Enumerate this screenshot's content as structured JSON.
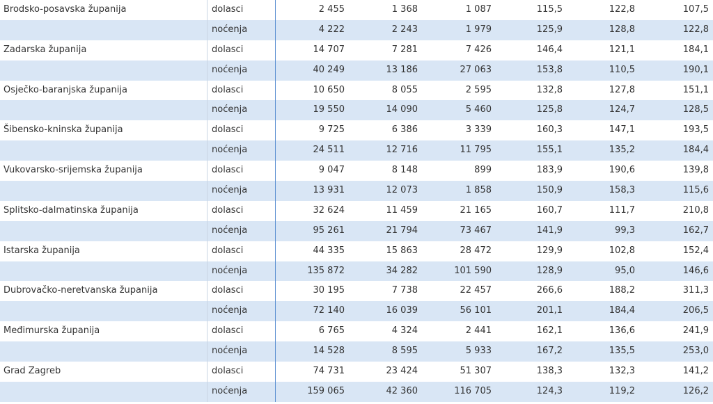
{
  "table": {
    "groups": [
      {
        "name": "Brodsko-posavska županija",
        "rows": [
          {
            "label": "dolasci",
            "cells": [
              "2 455",
              "1 368",
              "1 087",
              "115,5",
              "122,8",
              "107,5"
            ]
          },
          {
            "label": "noćenja",
            "cells": [
              "4 222",
              "2 243",
              "1 979",
              "125,9",
              "128,8",
              "122,8"
            ]
          }
        ]
      },
      {
        "name": "Zadarska županija",
        "rows": [
          {
            "label": "dolasci",
            "cells": [
              "14 707",
              "7 281",
              "7 426",
              "146,4",
              "121,1",
              "184,1"
            ]
          },
          {
            "label": "noćenja",
            "cells": [
              "40 249",
              "13 186",
              "27 063",
              "153,8",
              "110,5",
              "190,1"
            ]
          }
        ]
      },
      {
        "name": "Osječko-baranjska županija",
        "rows": [
          {
            "label": "dolasci",
            "cells": [
              "10 650",
              "8 055",
              "2 595",
              "132,8",
              "127,8",
              "151,1"
            ]
          },
          {
            "label": "noćenja",
            "cells": [
              "19 550",
              "14 090",
              "5 460",
              "125,8",
              "124,7",
              "128,5"
            ]
          }
        ]
      },
      {
        "name": "Šibensko-kninska županija",
        "rows": [
          {
            "label": "dolasci",
            "cells": [
              "9 725",
              "6 386",
              "3 339",
              "160,3",
              "147,1",
              "193,5"
            ]
          },
          {
            "label": "noćenja",
            "cells": [
              "24 511",
              "12 716",
              "11 795",
              "155,1",
              "135,2",
              "184,4"
            ]
          }
        ]
      },
      {
        "name": "Vukovarsko-srijemska županija",
        "rows": [
          {
            "label": "dolasci",
            "cells": [
              "9 047",
              "8 148",
              "899",
              "183,9",
              "190,6",
              "139,8"
            ]
          },
          {
            "label": "noćenja",
            "cells": [
              "13 931",
              "12 073",
              "1 858",
              "150,9",
              "158,3",
              "115,6"
            ]
          }
        ]
      },
      {
        "name": "Splitsko-dalmatinska županija",
        "rows": [
          {
            "label": "dolasci",
            "cells": [
              "32 624",
              "11 459",
              "21 165",
              "160,7",
              "111,7",
              "210,8"
            ]
          },
          {
            "label": "noćenja",
            "cells": [
              "95 261",
              "21 794",
              "73 467",
              "141,9",
              "99,3",
              "162,7"
            ]
          }
        ]
      },
      {
        "name": "Istarska županija",
        "rows": [
          {
            "label": "dolasci",
            "cells": [
              "44 335",
              "15 863",
              "28 472",
              "129,9",
              "102,8",
              "152,4"
            ]
          },
          {
            "label": "noćenja",
            "cells": [
              "135 872",
              "34 282",
              "101 590",
              "128,9",
              "95,0",
              "146,6"
            ]
          }
        ]
      },
      {
        "name": "Dubrovačko-neretvanska županija",
        "rows": [
          {
            "label": "dolasci",
            "cells": [
              "30 195",
              "7 738",
              "22 457",
              "266,6",
              "188,2",
              "311,3"
            ]
          },
          {
            "label": "noćenja",
            "cells": [
              "72 140",
              "16 039",
              "56 101",
              "201,1",
              "184,4",
              "206,5"
            ]
          }
        ]
      },
      {
        "name": "Međimurska županija",
        "rows": [
          {
            "label": "dolasci",
            "cells": [
              "6 765",
              "4 324",
              "2 441",
              "162,1",
              "136,6",
              "241,9"
            ]
          },
          {
            "label": "noćenja",
            "cells": [
              "14 528",
              "8 595",
              "5 933",
              "167,2",
              "135,5",
              "253,0"
            ]
          }
        ]
      },
      {
        "name": "Grad Zagreb",
        "rows": [
          {
            "label": "dolasci",
            "cells": [
              "74 731",
              "23 424",
              "51 307",
              "138,3",
              "132,3",
              "141,2"
            ]
          },
          {
            "label": "noćenja",
            "cells": [
              "159 065",
              "42 360",
              "116 705",
              "124,3",
              "119,2",
              "126,2"
            ]
          }
        ]
      }
    ]
  }
}
